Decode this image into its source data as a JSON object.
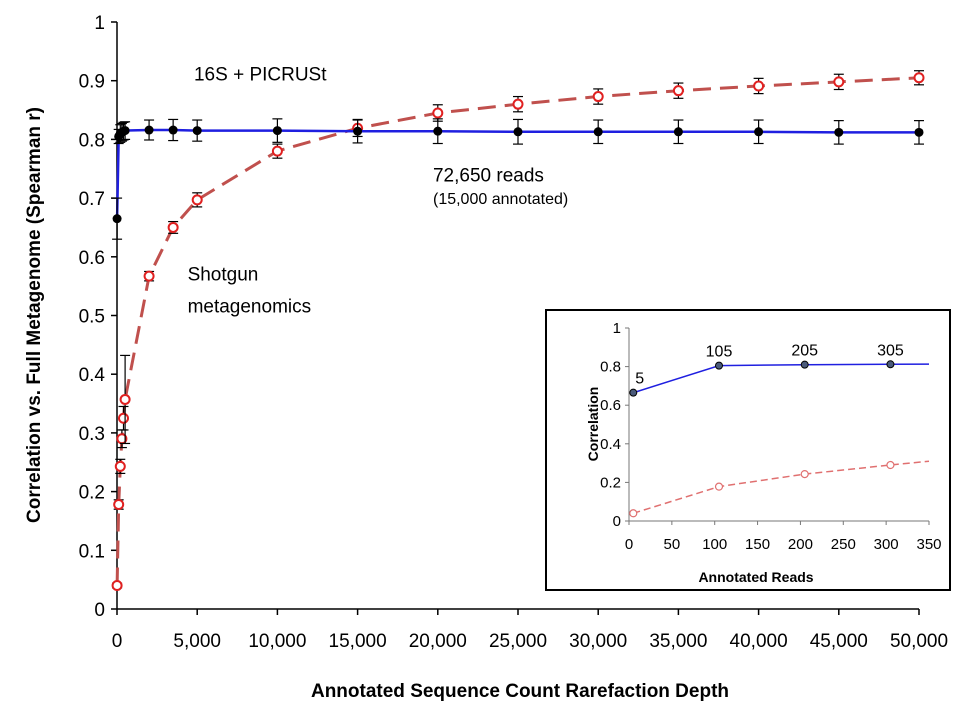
{
  "chart_data": [
    {
      "type": "line",
      "xlabel": "Annotated Sequence Count Rarefaction Depth",
      "ylabel": "Correlation vs. Full Metagenome (Spearman r)",
      "xlim": [
        0,
        50000
      ],
      "ylim": [
        0,
        1
      ],
      "x_ticks": [
        0,
        5000,
        10000,
        15000,
        20000,
        25000,
        30000,
        35000,
        40000,
        45000,
        50000
      ],
      "x_tick_labels": [
        "0",
        "5,000",
        "10,000",
        "15,000",
        "20,000",
        "25,000",
        "30,000",
        "35,000",
        "40,000",
        "45,000",
        "50,000"
      ],
      "y_ticks": [
        0,
        0.1,
        0.2,
        0.3,
        0.4,
        0.5,
        0.6,
        0.7,
        0.8,
        0.9,
        1
      ],
      "y_tick_labels": [
        "0",
        "0.1",
        "0.2",
        "0.3",
        "0.4",
        "0.5",
        "0.6",
        "0.7",
        "0.8",
        "0.9",
        "1"
      ],
      "grid": false,
      "series": [
        {
          "name": "16S + PICRUSt",
          "color": "#1f1fe0",
          "marker_color": "#000000",
          "style": "solid",
          "x": [
            5,
            105,
            205,
            305,
            405,
            505,
            2000,
            3500,
            5000,
            10000,
            15000,
            20000,
            25000,
            30000,
            35000,
            40000,
            45000,
            50000
          ],
          "y": [
            0.665,
            0.805,
            0.81,
            0.812,
            0.814,
            0.815,
            0.816,
            0.816,
            0.815,
            0.815,
            0.814,
            0.814,
            0.813,
            0.813,
            0.813,
            0.813,
            0.812,
            0.812
          ],
          "err": [
            0.035,
            0.012,
            0.015,
            0.015,
            0.015,
            0.015,
            0.017,
            0.018,
            0.018,
            0.02,
            0.02,
            0.021,
            0.021,
            0.02,
            0.02,
            0.02,
            0.02,
            0.02
          ]
        },
        {
          "name": "Shotgun metagenomics",
          "color": "#c0504d",
          "marker_color": "#e02020",
          "style": "dashed",
          "x": [
            5,
            105,
            205,
            305,
            405,
            505,
            2000,
            3500,
            5000,
            10000,
            15000,
            20000,
            25000,
            30000,
            35000,
            40000,
            45000,
            50000
          ],
          "y": [
            0.04,
            0.178,
            0.243,
            0.29,
            0.325,
            0.357,
            0.567,
            0.65,
            0.697,
            0.78,
            0.819,
            0.845,
            0.86,
            0.873,
            0.883,
            0.891,
            0.898,
            0.905
          ],
          "err": [
            0.004,
            0.008,
            0.012,
            0.015,
            0.02,
            0.075,
            0.008,
            0.01,
            0.012,
            0.012,
            0.014,
            0.014,
            0.013,
            0.013,
            0.013,
            0.013,
            0.013,
            0.012
          ]
        }
      ],
      "annotations": [
        {
          "text": "16S + PICRUSt",
          "x": 4800,
          "y": 0.9
        },
        {
          "text": "72,650 reads",
          "x": 19700,
          "y": 0.728
        },
        {
          "text": "(15,000 annotated)",
          "x": 19700,
          "y": 0.69
        },
        {
          "text": "Shotgun",
          "x": 4400,
          "y": 0.56
        },
        {
          "text": "metagenomics",
          "x": 4400,
          "y": 0.505
        }
      ]
    },
    {
      "type": "line",
      "xlabel": "Annotated Reads",
      "ylabel": "Correlation",
      "xlim": [
        0,
        350
      ],
      "ylim": [
        0,
        1
      ],
      "x_ticks": [
        0,
        50,
        100,
        150,
        200,
        250,
        300,
        350
      ],
      "x_tick_labels": [
        "0",
        "50",
        "100",
        "150",
        "200",
        "250",
        "300",
        "350"
      ],
      "y_ticks": [
        0,
        0.2,
        0.4,
        0.6,
        0.8,
        1
      ],
      "y_tick_labels": [
        "0",
        "0.2",
        "0.4",
        "0.6",
        "0.8",
        "1"
      ],
      "legend": "none",
      "series": [
        {
          "name": "16S + PICRUSt",
          "color": "#1f1fe0",
          "style": "solid",
          "x": [
            5,
            105,
            205,
            305,
            350
          ],
          "y": [
            0.665,
            0.805,
            0.81,
            0.812,
            0.813
          ],
          "markers": [
            5,
            105,
            205,
            305
          ]
        },
        {
          "name": "Shotgun metagenomics",
          "color": "#e07070",
          "style": "dashed",
          "x": [
            5,
            105,
            205,
            305,
            350
          ],
          "y": [
            0.04,
            0.178,
            0.243,
            0.29,
            0.31
          ],
          "markers": [
            5,
            105,
            205,
            305
          ]
        }
      ],
      "point_labels": [
        "5",
        "105",
        "205",
        "305"
      ]
    }
  ]
}
